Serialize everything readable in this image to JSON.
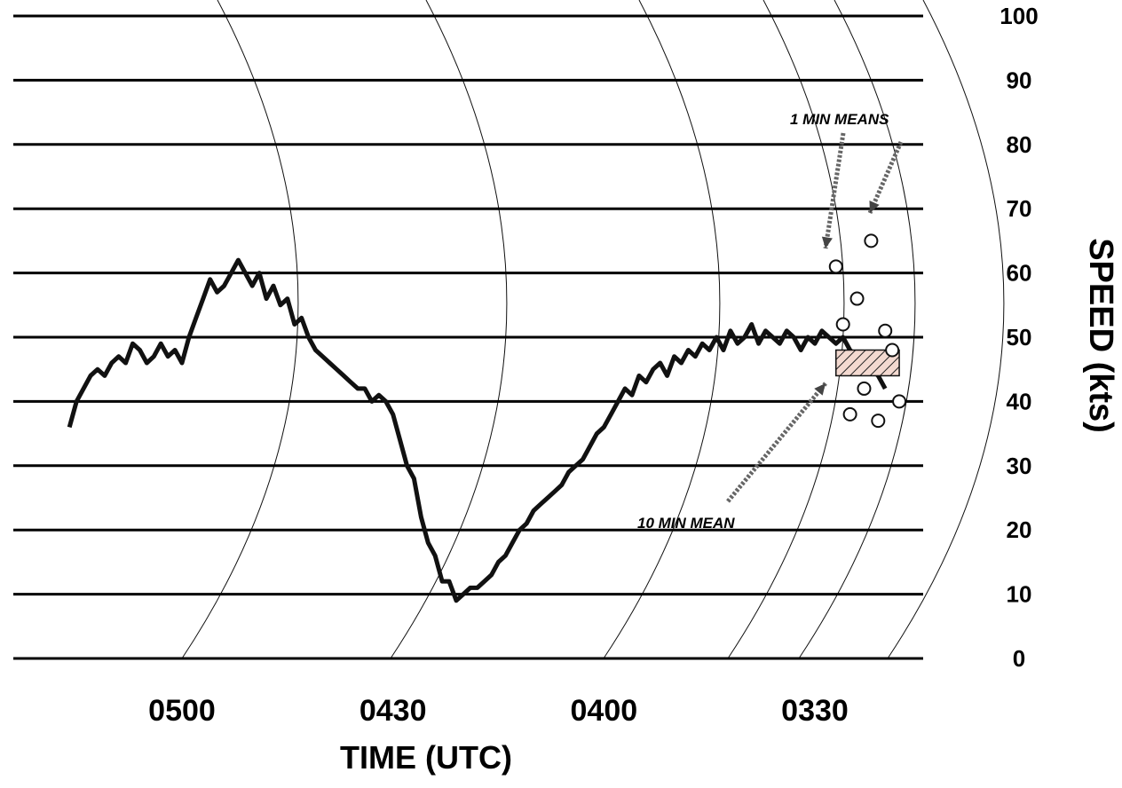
{
  "chart_data": {
    "type": "line",
    "title": "",
    "xlabel": "TIME (UTC)",
    "ylabel": "SPEED (kts)",
    "ylim": [
      0,
      100
    ],
    "yticks": [
      0,
      10,
      20,
      30,
      40,
      50,
      60,
      70,
      80,
      90,
      100
    ],
    "xticks": [
      "0500",
      "0430",
      "0400",
      "0330"
    ],
    "x_axis_direction": "time increases to the left",
    "grid": true,
    "series": [
      {
        "values": [
          {
            "t": "05:16",
            "v": 36
          },
          {
            "t": "05:15",
            "v": 40
          },
          {
            "t": "05:14",
            "v": 42
          },
          {
            "t": "05:13",
            "v": 44
          },
          {
            "t": "05:12",
            "v": 45
          },
          {
            "t": "05:11",
            "v": 44
          },
          {
            "t": "05:10",
            "v": 46
          },
          {
            "t": "05:09",
            "v": 47
          },
          {
            "t": "05:08",
            "v": 46
          },
          {
            "t": "05:07",
            "v": 49
          },
          {
            "t": "05:06",
            "v": 48
          },
          {
            "t": "05:05",
            "v": 46
          },
          {
            "t": "05:04",
            "v": 47
          },
          {
            "t": "05:03",
            "v": 49
          },
          {
            "t": "05:02",
            "v": 47
          },
          {
            "t": "05:01",
            "v": 48
          },
          {
            "t": "05:00",
            "v": 46
          },
          {
            "t": "04:59",
            "v": 50
          },
          {
            "t": "04:58",
            "v": 53
          },
          {
            "t": "04:57",
            "v": 56
          },
          {
            "t": "04:56",
            "v": 59
          },
          {
            "t": "04:55",
            "v": 57
          },
          {
            "t": "04:54",
            "v": 58
          },
          {
            "t": "04:53",
            "v": 60
          },
          {
            "t": "04:52",
            "v": 62
          },
          {
            "t": "04:51",
            "v": 60
          },
          {
            "t": "04:50",
            "v": 58
          },
          {
            "t": "04:49",
            "v": 60
          },
          {
            "t": "04:48",
            "v": 56
          },
          {
            "t": "04:47",
            "v": 58
          },
          {
            "t": "04:46",
            "v": 55
          },
          {
            "t": "04:45",
            "v": 56
          },
          {
            "t": "04:44",
            "v": 52
          },
          {
            "t": "04:43",
            "v": 53
          },
          {
            "t": "04:42",
            "v": 50
          },
          {
            "t": "04:41",
            "v": 48
          },
          {
            "t": "04:40",
            "v": 47
          },
          {
            "t": "04:39",
            "v": 46
          },
          {
            "t": "04:38",
            "v": 45
          },
          {
            "t": "04:37",
            "v": 44
          },
          {
            "t": "04:36",
            "v": 43
          },
          {
            "t": "04:35",
            "v": 42
          },
          {
            "t": "04:34",
            "v": 42
          },
          {
            "t": "04:33",
            "v": 40
          },
          {
            "t": "04:32",
            "v": 41
          },
          {
            "t": "04:31",
            "v": 40
          },
          {
            "t": "04:30",
            "v": 38
          },
          {
            "t": "04:29",
            "v": 34
          },
          {
            "t": "04:28",
            "v": 30
          },
          {
            "t": "04:27",
            "v": 28
          },
          {
            "t": "04:26",
            "v": 22
          },
          {
            "t": "04:25",
            "v": 18
          },
          {
            "t": "04:24",
            "v": 16
          },
          {
            "t": "04:23",
            "v": 12
          },
          {
            "t": "04:22",
            "v": 12
          },
          {
            "t": "04:21",
            "v": 9
          },
          {
            "t": "04:20",
            "v": 10
          },
          {
            "t": "04:19",
            "v": 11
          },
          {
            "t": "04:18",
            "v": 11
          },
          {
            "t": "04:17",
            "v": 12
          },
          {
            "t": "04:16",
            "v": 13
          },
          {
            "t": "04:15",
            "v": 15
          },
          {
            "t": "04:14",
            "v": 16
          },
          {
            "t": "04:13",
            "v": 18
          },
          {
            "t": "04:12",
            "v": 20
          },
          {
            "t": "04:11",
            "v": 21
          },
          {
            "t": "04:10",
            "v": 23
          },
          {
            "t": "04:09",
            "v": 24
          },
          {
            "t": "04:08",
            "v": 25
          },
          {
            "t": "04:07",
            "v": 26
          },
          {
            "t": "04:06",
            "v": 27
          },
          {
            "t": "04:05",
            "v": 29
          },
          {
            "t": "04:04",
            "v": 30
          },
          {
            "t": "04:03",
            "v": 31
          },
          {
            "t": "04:02",
            "v": 33
          },
          {
            "t": "04:01",
            "v": 35
          },
          {
            "t": "04:00",
            "v": 36
          },
          {
            "t": "03:59",
            "v": 38
          },
          {
            "t": "03:58",
            "v": 40
          },
          {
            "t": "03:57",
            "v": 42
          },
          {
            "t": "03:56",
            "v": 41
          },
          {
            "t": "03:55",
            "v": 44
          },
          {
            "t": "03:54",
            "v": 43
          },
          {
            "t": "03:53",
            "v": 45
          },
          {
            "t": "03:52",
            "v": 46
          },
          {
            "t": "03:51",
            "v": 44
          },
          {
            "t": "03:50",
            "v": 47
          },
          {
            "t": "03:49",
            "v": 46
          },
          {
            "t": "03:48",
            "v": 48
          },
          {
            "t": "03:47",
            "v": 47
          },
          {
            "t": "03:46",
            "v": 49
          },
          {
            "t": "03:45",
            "v": 48
          },
          {
            "t": "03:44",
            "v": 50
          },
          {
            "t": "03:43",
            "v": 48
          },
          {
            "t": "03:42",
            "v": 51
          },
          {
            "t": "03:41",
            "v": 49
          },
          {
            "t": "03:40",
            "v": 50
          },
          {
            "t": "03:39",
            "v": 52
          },
          {
            "t": "03:38",
            "v": 49
          },
          {
            "t": "03:37",
            "v": 51
          },
          {
            "t": "03:36",
            "v": 50
          },
          {
            "t": "03:35",
            "v": 49
          },
          {
            "t": "03:34",
            "v": 51
          },
          {
            "t": "03:33",
            "v": 50
          },
          {
            "t": "03:32",
            "v": 48
          },
          {
            "t": "03:31",
            "v": 50
          },
          {
            "t": "03:30",
            "v": 49
          },
          {
            "t": "03:29",
            "v": 51
          },
          {
            "t": "03:28",
            "v": 50
          },
          {
            "t": "03:27",
            "v": 49
          },
          {
            "t": "03:26",
            "v": 50
          },
          {
            "t": "03:25",
            "v": 48
          },
          {
            "t": "03:24",
            "v": 47
          },
          {
            "t": "03:23",
            "v": 46
          },
          {
            "t": "03:22",
            "v": 45
          },
          {
            "t": "03:21",
            "v": 44
          },
          {
            "t": "03:20",
            "v": 42
          }
        ]
      }
    ],
    "one_min_means": [
      {
        "t": "03:27",
        "v": 61
      },
      {
        "t": "03:26",
        "v": 52
      },
      {
        "t": "03:25",
        "v": 38
      },
      {
        "t": "03:24",
        "v": 56
      },
      {
        "t": "03:23",
        "v": 42
      },
      {
        "t": "03:22",
        "v": 65
      },
      {
        "t": "03:21",
        "v": 37
      },
      {
        "t": "03:20",
        "v": 51
      },
      {
        "t": "03:19",
        "v": 48
      },
      {
        "t": "03:18",
        "v": 40
      }
    ],
    "ten_min_mean": {
      "t_start": "03:27",
      "t_end": "03:18",
      "v_low": 44,
      "v_high": 48
    },
    "annotations": [
      {
        "text": "1 MIN MEANS"
      },
      {
        "text": "10 MIN MEAN"
      }
    ]
  }
}
